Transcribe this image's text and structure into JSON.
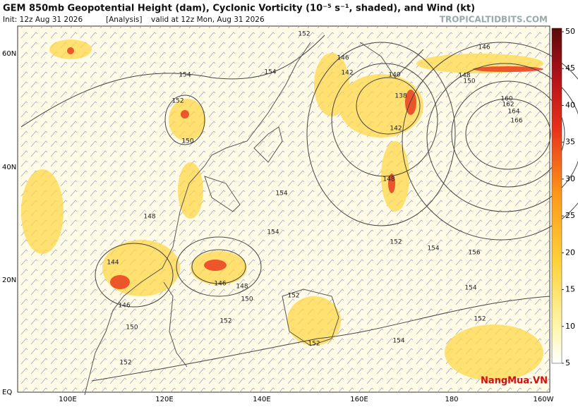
{
  "header": {
    "title": "GEM 850mb Geopotential Height (dam), Cyclonic Vorticity (10⁻⁵ s⁻¹, shaded), and Wind (kt)",
    "init": "Init: 12z Aug 31 2026",
    "run": "[Analysis]",
    "valid": "valid at 12z Mon, Aug 31 2026",
    "source": "TROPICALTIDBITS.COM"
  },
  "map": {
    "lon_labels": [
      "100E",
      "120E",
      "140E",
      "160E",
      "180",
      "160W"
    ],
    "lat_labels": [
      "60N",
      "40N",
      "20N",
      "EQ"
    ],
    "contour_labels": [
      "154",
      "154",
      "152",
      "150",
      "152",
      "146",
      "142",
      "140",
      "138",
      "142",
      "146",
      "148",
      "150",
      "148",
      "160",
      "162",
      "164",
      "166",
      "154",
      "154",
      "152",
      "154",
      "156",
      "148",
      "144",
      "146",
      "148",
      "150",
      "152",
      "146",
      "150",
      "152",
      "152",
      "152",
      "154",
      "154",
      "152"
    ]
  },
  "colorbar": {
    "ticks": [
      5,
      10,
      15,
      20,
      25,
      30,
      35,
      40,
      45,
      50
    ]
  },
  "watermark": "NangMua.VN"
}
